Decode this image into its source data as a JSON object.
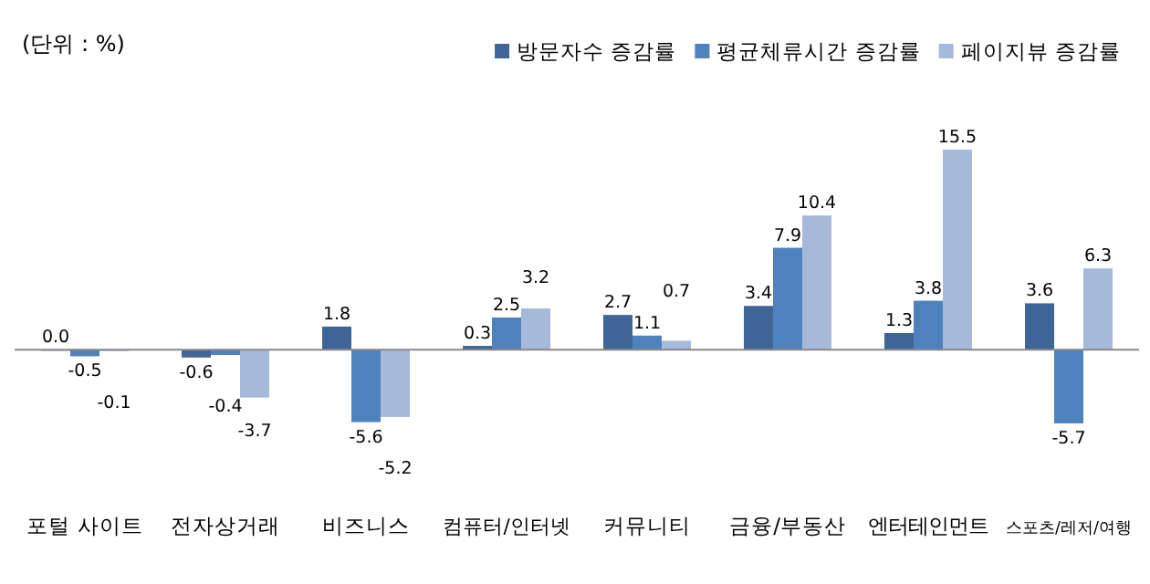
{
  "chart_data": {
    "type": "bar",
    "annotations": [
      "(단위 : %)"
    ],
    "categories": [
      "포털 사이트",
      "전자상거래",
      "비즈니스",
      "컴퓨터/인터넷",
      "커뮤니티",
      "금융/부동산",
      "엔터테인먼트",
      "스포츠/레저/여행"
    ],
    "series": [
      {
        "name": "방문자수 증감률",
        "color": "#3f6596",
        "values": [
          0.0,
          -0.6,
          1.8,
          0.3,
          2.7,
          3.4,
          1.3,
          3.6
        ],
        "value_labels": [
          "0.0",
          "-0.6",
          "1.8",
          "0.3",
          "2.7",
          "3.4",
          "1.3",
          "3.6"
        ]
      },
      {
        "name": "평균체류시간 증감률",
        "color": "#4f81bd",
        "values": [
          -0.5,
          -0.4,
          -5.6,
          2.5,
          1.1,
          7.9,
          3.8,
          -5.7
        ],
        "value_labels": [
          "-0.5",
          "-0.4",
          "-5.6",
          "2.5",
          "1.1",
          "7.9",
          "3.8",
          "-5.7"
        ]
      },
      {
        "name": "페이지뷰 증감률",
        "color": "#a7b9d9",
        "values": [
          -0.1,
          -3.7,
          -5.2,
          3.2,
          0.7,
          10.4,
          15.5,
          6.3
        ],
        "value_labels": [
          "-0.1",
          "-3.7",
          "-5.2",
          "3.2",
          "0.7",
          "10.4",
          "15.5",
          "6.3"
        ]
      }
    ],
    "legend": "top right"
  }
}
